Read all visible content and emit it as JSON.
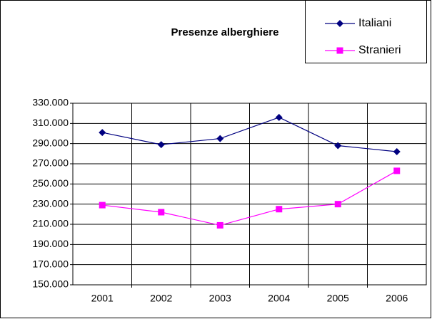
{
  "chart_data": {
    "type": "line",
    "title": "Presenze alberghiere",
    "categories": [
      "2001",
      "2002",
      "2003",
      "2004",
      "2005",
      "2006"
    ],
    "series": [
      {
        "name": "Italiani",
        "color": "#000080",
        "marker": "diamond",
        "values": [
          301000,
          289000,
          295000,
          316000,
          288000,
          282000
        ]
      },
      {
        "name": "Stranieri",
        "color": "#ff00ff",
        "marker": "square",
        "values": [
          229000,
          222000,
          209000,
          225000,
          230000,
          263000
        ]
      }
    ],
    "ylim": [
      150000,
      330000
    ],
    "yticks": [
      {
        "value": 150000,
        "label": "150.000"
      },
      {
        "value": 170000,
        "label": "170.000"
      },
      {
        "value": 190000,
        "label": "190.000"
      },
      {
        "value": 210000,
        "label": "210.000"
      },
      {
        "value": 230000,
        "label": "230.000"
      },
      {
        "value": 250000,
        "label": "250.000"
      },
      {
        "value": 270000,
        "label": "270.000"
      },
      {
        "value": 290000,
        "label": "290.000"
      },
      {
        "value": 310000,
        "label": "310.000"
      },
      {
        "value": 330000,
        "label": "330.000"
      }
    ],
    "grid": true,
    "legend": "top-right"
  }
}
